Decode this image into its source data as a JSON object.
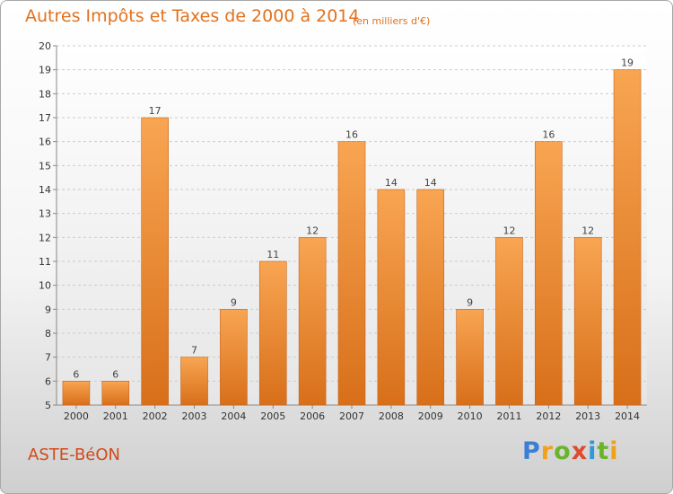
{
  "header": {
    "title": "Autres Impôts et Taxes de 2000 à 2014",
    "subtitle": "(en milliers d'€)"
  },
  "footer": {
    "commune": "ASTE-BéON",
    "logo_letters": [
      {
        "char": "P",
        "color": "#3a7fd5"
      },
      {
        "char": "r",
        "color": "#f0a11c"
      },
      {
        "char": "o",
        "color": "#6ab42d"
      },
      {
        "char": "x",
        "color": "#e04a2e"
      },
      {
        "char": "i",
        "color": "#2c9ad8"
      },
      {
        "char": "t",
        "color": "#6ab42d"
      },
      {
        "char": "i",
        "color": "#f0a11c"
      }
    ]
  },
  "colors": {
    "bar_top": "#f8a552",
    "bar_bottom": "#d86f1a",
    "accent": "#e2711d"
  },
  "chart_data": {
    "type": "bar",
    "categories": [
      "2000",
      "2001",
      "2002",
      "2003",
      "2004",
      "2005",
      "2006",
      "2007",
      "2008",
      "2009",
      "2010",
      "2011",
      "2012",
      "2013",
      "2014"
    ],
    "values": [
      6,
      6,
      17,
      7,
      9,
      11,
      12,
      16,
      14,
      14,
      9,
      12,
      16,
      12,
      19
    ],
    "title": "Autres Impôts et Taxes de 2000 à 2014",
    "ylim": [
      5,
      20
    ],
    "yticks": [
      5,
      6,
      7,
      8,
      9,
      10,
      11,
      12,
      13,
      14,
      15,
      16,
      17,
      18,
      19,
      20
    ],
    "grid": true,
    "legend": "none"
  }
}
